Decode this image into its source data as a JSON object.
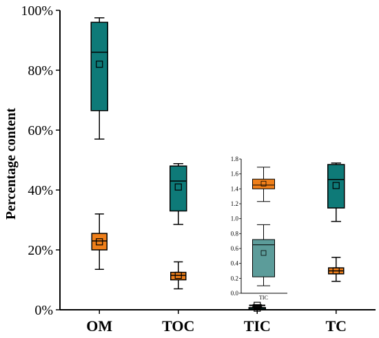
{
  "chart_data": [
    {
      "type": "box",
      "ylabel": "Percentage content",
      "categories": [
        "OM",
        "TOC",
        "TIC",
        "TC"
      ],
      "ylim": [
        0,
        100
      ],
      "yticks": [
        "0%",
        "20%",
        "40%",
        "60%",
        "80%",
        "100%"
      ],
      "colors": {
        "teal": "#0e7a78",
        "orange": "#ef7f1a"
      },
      "series": [
        {
          "color": "teal",
          "boxes": [
            {
              "category": "OM",
              "min": 57,
              "q1": 66.5,
              "median": 86,
              "q3": 96,
              "max": 97.5,
              "mean": 82
            },
            {
              "category": "TOC",
              "min": 28.5,
              "q1": 33,
              "median": 43,
              "q3": 48,
              "max": 48.8,
              "mean": 41
            },
            {
              "category": "TIC",
              "min": 0.1,
              "q1": 0.22,
              "median": 0.65,
              "q3": 0.72,
              "max": 0.92,
              "mean": 0.54
            },
            {
              "category": "TC",
              "min": 29.5,
              "q1": 34,
              "median": 43.5,
              "q3": 48.5,
              "max": 49,
              "mean": 41.5
            }
          ]
        },
        {
          "color": "orange",
          "boxes": [
            {
              "category": "OM",
              "min": 13.5,
              "q1": 20,
              "median": 23,
              "q3": 25.5,
              "max": 32,
              "mean": 22.7
            },
            {
              "category": "TOC",
              "min": 7,
              "q1": 10,
              "median": 11.5,
              "q3": 12.5,
              "max": 16,
              "mean": 11.5
            },
            {
              "category": "TIC",
              "min": 1.23,
              "q1": 1.4,
              "median": 1.45,
              "q3": 1.53,
              "max": 1.69,
              "mean": 1.47
            },
            {
              "category": "TC",
              "min": 9.5,
              "q1": 12,
              "median": 13,
              "q3": 14,
              "max": 17.5,
              "mean": 13
            }
          ]
        }
      ]
    },
    {
      "type": "box",
      "inset": true,
      "categories": [
        "TIC"
      ],
      "ylim": [
        0,
        1.8
      ],
      "yticks": [
        "0.0",
        "0.2",
        "0.4",
        "0.6",
        "0.8",
        "1.0",
        "1.2",
        "1.4",
        "1.6",
        "1.8"
      ],
      "series": [
        {
          "color": "teal",
          "boxes": [
            {
              "category": "TIC",
              "min": 0.1,
              "q1": 0.22,
              "median": 0.65,
              "q3": 0.72,
              "max": 0.92,
              "mean": 0.54
            }
          ]
        },
        {
          "color": "orange",
          "boxes": [
            {
              "category": "TIC",
              "min": 1.23,
              "q1": 1.4,
              "median": 1.45,
              "q3": 1.53,
              "max": 1.69,
              "mean": 1.47
            }
          ]
        }
      ]
    }
  ]
}
